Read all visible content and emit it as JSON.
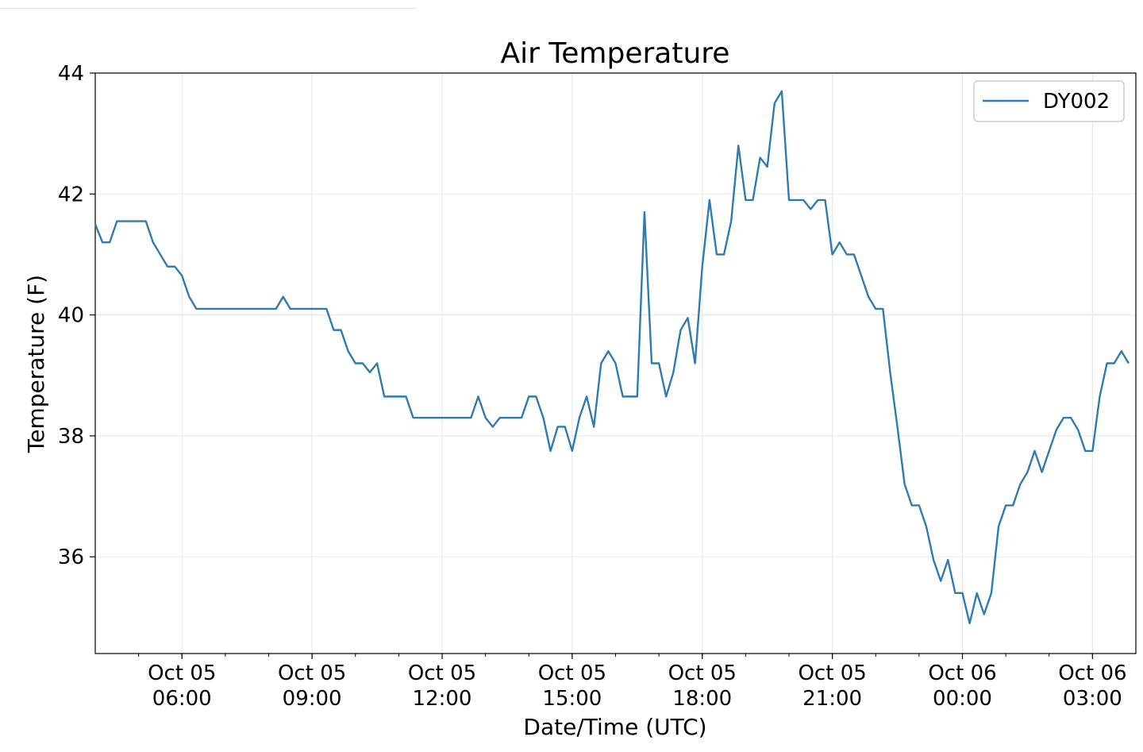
{
  "chart_data": {
    "type": "line",
    "title": "Air Temperature",
    "xlabel": "Date/Time (UTC)",
    "ylabel": "Temperature (F)",
    "xlim": [
      "2023-10-05 04:00",
      "2023-10-06 04:00"
    ],
    "ylim": [
      34.4,
      44.0
    ],
    "yticks": [
      36,
      38,
      40,
      42,
      44
    ],
    "ytick_labels": [
      "36",
      "38",
      "40",
      "42",
      "44"
    ],
    "xticks": [
      {
        "x": "2023-10-05 06:00",
        "label": [
          "Oct 05",
          "06:00"
        ]
      },
      {
        "x": "2023-10-05 09:00",
        "label": [
          "Oct 05",
          "09:00"
        ]
      },
      {
        "x": "2023-10-05 12:00",
        "label": [
          "Oct 05",
          "12:00"
        ]
      },
      {
        "x": "2023-10-05 15:00",
        "label": [
          "Oct 05",
          "15:00"
        ]
      },
      {
        "x": "2023-10-05 18:00",
        "label": [
          "Oct 05",
          "18:00"
        ]
      },
      {
        "x": "2023-10-05 21:00",
        "label": [
          "Oct 05",
          "21:00"
        ]
      },
      {
        "x": "2023-10-06 00:00",
        "label": [
          "Oct 06",
          "00:00"
        ]
      },
      {
        "x": "2023-10-06 03:00",
        "label": [
          "Oct 06",
          "03:00"
        ]
      }
    ],
    "grid": true,
    "legend_position": "top-right",
    "series": [
      {
        "name": "DY002",
        "color": "#2f7bb0",
        "points": [
          [
            "2023-10-05 04:00",
            41.5
          ],
          [
            "2023-10-05 04:10",
            41.2
          ],
          [
            "2023-10-05 04:20",
            41.2
          ],
          [
            "2023-10-05 04:30",
            41.55
          ],
          [
            "2023-10-05 04:40",
            41.55
          ],
          [
            "2023-10-05 04:50",
            41.55
          ],
          [
            "2023-10-05 05:00",
            41.55
          ],
          [
            "2023-10-05 05:10",
            41.55
          ],
          [
            "2023-10-05 05:20",
            41.2
          ],
          [
            "2023-10-05 05:30",
            41.0
          ],
          [
            "2023-10-05 05:40",
            40.8
          ],
          [
            "2023-10-05 05:50",
            40.8
          ],
          [
            "2023-10-05 06:00",
            40.65
          ],
          [
            "2023-10-05 06:10",
            40.3
          ],
          [
            "2023-10-05 06:20",
            40.1
          ],
          [
            "2023-10-05 06:30",
            40.1
          ],
          [
            "2023-10-05 06:40",
            40.1
          ],
          [
            "2023-10-05 06:50",
            40.1
          ],
          [
            "2023-10-05 07:00",
            40.1
          ],
          [
            "2023-10-05 07:10",
            40.1
          ],
          [
            "2023-10-05 07:20",
            40.1
          ],
          [
            "2023-10-05 07:30",
            40.1
          ],
          [
            "2023-10-05 07:40",
            40.1
          ],
          [
            "2023-10-05 07:50",
            40.1
          ],
          [
            "2023-10-05 08:00",
            40.1
          ],
          [
            "2023-10-05 08:10",
            40.1
          ],
          [
            "2023-10-05 08:20",
            40.3
          ],
          [
            "2023-10-05 08:30",
            40.1
          ],
          [
            "2023-10-05 08:40",
            40.1
          ],
          [
            "2023-10-05 08:50",
            40.1
          ],
          [
            "2023-10-05 09:00",
            40.1
          ],
          [
            "2023-10-05 09:10",
            40.1
          ],
          [
            "2023-10-05 09:20",
            40.1
          ],
          [
            "2023-10-05 09:30",
            39.75
          ],
          [
            "2023-10-05 09:40",
            39.75
          ],
          [
            "2023-10-05 09:50",
            39.4
          ],
          [
            "2023-10-05 10:00",
            39.2
          ],
          [
            "2023-10-05 10:10",
            39.2
          ],
          [
            "2023-10-05 10:20",
            39.05
          ],
          [
            "2023-10-05 10:30",
            39.2
          ],
          [
            "2023-10-05 10:40",
            38.65
          ],
          [
            "2023-10-05 10:50",
            38.65
          ],
          [
            "2023-10-05 11:00",
            38.65
          ],
          [
            "2023-10-05 11:10",
            38.65
          ],
          [
            "2023-10-05 11:20",
            38.3
          ],
          [
            "2023-10-05 11:30",
            38.3
          ],
          [
            "2023-10-05 11:40",
            38.3
          ],
          [
            "2023-10-05 11:50",
            38.3
          ],
          [
            "2023-10-05 12:00",
            38.3
          ],
          [
            "2023-10-05 12:10",
            38.3
          ],
          [
            "2023-10-05 12:20",
            38.3
          ],
          [
            "2023-10-05 12:30",
            38.3
          ],
          [
            "2023-10-05 12:40",
            38.3
          ],
          [
            "2023-10-05 12:50",
            38.65
          ],
          [
            "2023-10-05 13:00",
            38.3
          ],
          [
            "2023-10-05 13:10",
            38.15
          ],
          [
            "2023-10-05 13:20",
            38.3
          ],
          [
            "2023-10-05 13:30",
            38.3
          ],
          [
            "2023-10-05 13:40",
            38.3
          ],
          [
            "2023-10-05 13:50",
            38.3
          ],
          [
            "2023-10-05 14:00",
            38.65
          ],
          [
            "2023-10-05 14:10",
            38.65
          ],
          [
            "2023-10-05 14:20",
            38.3
          ],
          [
            "2023-10-05 14:30",
            37.75
          ],
          [
            "2023-10-05 14:40",
            38.15
          ],
          [
            "2023-10-05 14:50",
            38.15
          ],
          [
            "2023-10-05 15:00",
            37.75
          ],
          [
            "2023-10-05 15:10",
            38.3
          ],
          [
            "2023-10-05 15:20",
            38.65
          ],
          [
            "2023-10-05 15:30",
            38.15
          ],
          [
            "2023-10-05 15:40",
            39.2
          ],
          [
            "2023-10-05 15:50",
            39.4
          ],
          [
            "2023-10-05 16:00",
            39.2
          ],
          [
            "2023-10-05 16:10",
            38.65
          ],
          [
            "2023-10-05 16:20",
            38.65
          ],
          [
            "2023-10-05 16:30",
            38.65
          ],
          [
            "2023-10-05 16:40",
            41.7
          ],
          [
            "2023-10-05 16:50",
            39.2
          ],
          [
            "2023-10-05 17:00",
            39.2
          ],
          [
            "2023-10-05 17:10",
            38.65
          ],
          [
            "2023-10-05 17:20",
            39.05
          ],
          [
            "2023-10-05 17:30",
            39.75
          ],
          [
            "2023-10-05 17:40",
            39.95
          ],
          [
            "2023-10-05 17:50",
            39.2
          ],
          [
            "2023-10-05 18:00",
            40.8
          ],
          [
            "2023-10-05 18:10",
            41.9
          ],
          [
            "2023-10-05 18:20",
            41.0
          ],
          [
            "2023-10-05 18:30",
            41.0
          ],
          [
            "2023-10-05 18:40",
            41.55
          ],
          [
            "2023-10-05 18:50",
            42.8
          ],
          [
            "2023-10-05 19:00",
            41.9
          ],
          [
            "2023-10-05 19:10",
            41.9
          ],
          [
            "2023-10-05 19:20",
            42.6
          ],
          [
            "2023-10-05 19:30",
            42.45
          ],
          [
            "2023-10-05 19:40",
            43.5
          ],
          [
            "2023-10-05 19:50",
            43.7
          ],
          [
            "2023-10-05 20:00",
            41.9
          ],
          [
            "2023-10-05 20:10",
            41.9
          ],
          [
            "2023-10-05 20:20",
            41.9
          ],
          [
            "2023-10-05 20:30",
            41.75
          ],
          [
            "2023-10-05 20:40",
            41.9
          ],
          [
            "2023-10-05 20:50",
            41.9
          ],
          [
            "2023-10-05 21:00",
            41.0
          ],
          [
            "2023-10-05 21:10",
            41.2
          ],
          [
            "2023-10-05 21:20",
            41.0
          ],
          [
            "2023-10-05 21:30",
            41.0
          ],
          [
            "2023-10-05 21:40",
            40.65
          ],
          [
            "2023-10-05 21:50",
            40.3
          ],
          [
            "2023-10-05 22:00",
            40.1
          ],
          [
            "2023-10-05 22:10",
            40.1
          ],
          [
            "2023-10-05 22:20",
            39.05
          ],
          [
            "2023-10-05 22:30",
            38.15
          ],
          [
            "2023-10-05 22:40",
            37.2
          ],
          [
            "2023-10-05 22:50",
            36.85
          ],
          [
            "2023-10-05 23:00",
            36.85
          ],
          [
            "2023-10-05 23:10",
            36.5
          ],
          [
            "2023-10-05 23:20",
            35.95
          ],
          [
            "2023-10-05 23:30",
            35.6
          ],
          [
            "2023-10-05 23:40",
            35.95
          ],
          [
            "2023-10-05 23:50",
            35.4
          ],
          [
            "2023-10-06 00:00",
            35.4
          ],
          [
            "2023-10-06 00:10",
            34.9
          ],
          [
            "2023-10-06 00:20",
            35.4
          ],
          [
            "2023-10-06 00:30",
            35.05
          ],
          [
            "2023-10-06 00:40",
            35.4
          ],
          [
            "2023-10-06 00:50",
            36.5
          ],
          [
            "2023-10-06 01:00",
            36.85
          ],
          [
            "2023-10-06 01:10",
            36.85
          ],
          [
            "2023-10-06 01:20",
            37.2
          ],
          [
            "2023-10-06 01:30",
            37.4
          ],
          [
            "2023-10-06 01:40",
            37.75
          ],
          [
            "2023-10-06 01:50",
            37.4
          ],
          [
            "2023-10-06 02:00",
            37.75
          ],
          [
            "2023-10-06 02:10",
            38.1
          ],
          [
            "2023-10-06 02:20",
            38.3
          ],
          [
            "2023-10-06 02:30",
            38.3
          ],
          [
            "2023-10-06 02:40",
            38.1
          ],
          [
            "2023-10-06 02:50",
            37.75
          ],
          [
            "2023-10-06 03:00",
            37.75
          ],
          [
            "2023-10-06 03:10",
            38.65
          ],
          [
            "2023-10-06 03:20",
            39.2
          ],
          [
            "2023-10-06 03:30",
            39.2
          ],
          [
            "2023-10-06 03:40",
            39.4
          ],
          [
            "2023-10-06 03:50",
            39.2
          ]
        ]
      }
    ]
  }
}
